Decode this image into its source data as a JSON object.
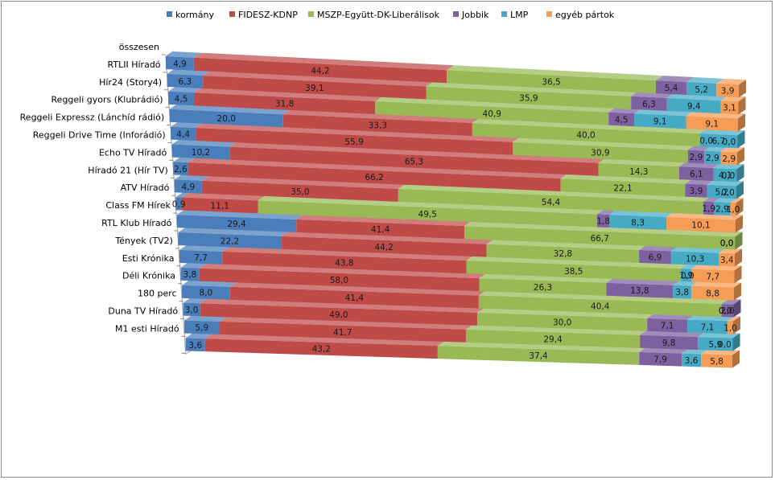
{
  "chart_data": {
    "type": "bar",
    "stacked": "100%",
    "orientation": "horizontal",
    "three_d": true,
    "title": "",
    "xlabel": "",
    "ylabel": "",
    "legend_position": "top",
    "categories": [
      "összesen",
      "RTLII Híradó",
      "Hír24 (Story4)",
      "Reggeli gyors (Klubrádió)",
      "Reggeli Expressz (Lánchíd rádió)",
      "Reggeli Drive Time (Inforádió)",
      "Echo TV Híradó",
      "Híradó 21 (Hír TV)",
      "ATV Híradó",
      "Class FM Hírek",
      "RTL Klub Híradó",
      "Tények (TV2)",
      "Esti Krónika",
      "Déli Krónika",
      "180 perc",
      "Duna TV Híradó",
      "M1 esti Híradó"
    ],
    "series": [
      {
        "name": "kormány",
        "color": "#4a7ebb",
        "values": [
          4.9,
          6.3,
          4.5,
          20.0,
          4.4,
          10.2,
          2.6,
          4.9,
          0.9,
          29.4,
          22.2,
          7.7,
          3.8,
          8.0,
          3.0,
          5.9,
          3.6
        ],
        "labels": [
          "4,9",
          "6,3",
          "4,5",
          "20,0",
          "4,4",
          "10,2",
          "2,6",
          "4,9",
          "0,9",
          "29,4",
          "22,2",
          "7,7",
          "3,8",
          "8,0",
          "3,0",
          "5,9",
          "3,6"
        ]
      },
      {
        "name": "FIDESZ-KDNP",
        "color": "#be4b48",
        "values": [
          44.2,
          39.1,
          31.8,
          33.3,
          55.9,
          65.3,
          66.2,
          35.0,
          11.1,
          41.4,
          44.2,
          43.8,
          58.0,
          41.4,
          49.0,
          41.7,
          43.2
        ],
        "labels": [
          "44,2",
          "39,1",
          "31,8",
          "33,3",
          "55,9",
          "65,3",
          "66,2",
          "35,0",
          "11,1",
          "41,4",
          "44,2",
          "43,8",
          "58,0",
          "41,4",
          "49,0",
          "41,7",
          "43,2"
        ]
      },
      {
        "name": "MSZP-Együtt-DK-Liberálisok",
        "color": "#98b954",
        "values": [
          36.5,
          35.9,
          40.9,
          40.0,
          30.9,
          14.3,
          22.1,
          54.4,
          49.5,
          66.7,
          32.8,
          38.5,
          26.3,
          40.4,
          30.0,
          29.4,
          37.4
        ],
        "labels": [
          "36,5",
          "35,9",
          "40,9",
          "40,0",
          "30,9",
          "14,3",
          "22,1",
          "54,4",
          "49,5",
          "66,7",
          "32,8",
          "38,5",
          "26,3",
          "40,4",
          "30,0",
          "29,4",
          "37,4"
        ]
      },
      {
        "name": "Jobbik",
        "color": "#7d60a0",
        "values": [
          5.4,
          6.3,
          4.5,
          0.0,
          2.9,
          6.1,
          3.9,
          1.9,
          1.8,
          0.0,
          6.9,
          0.0,
          13.8,
          2.0,
          7.1,
          9.8,
          7.9
        ],
        "labels": [
          "5,4",
          "6,3",
          "4,5",
          "0,0",
          "2,9",
          "6,1",
          "3,9",
          "1,9",
          "1,8",
          "0,0",
          "6,9",
          "0,0",
          "13,8",
          "2,0",
          "7,1",
          "9,8",
          "7,9"
        ]
      },
      {
        "name": "LMP",
        "color": "#46aac5",
        "values": [
          5.2,
          9.4,
          9.1,
          6.7,
          2.9,
          4.1,
          5.2,
          2.9,
          8.3,
          0.0,
          10.3,
          1.9,
          3.8,
          0.0,
          7.1,
          5.9,
          3.6
        ],
        "labels": [
          "5,2",
          "9,4",
          "9,1",
          "6,7",
          "2,9",
          "4,1",
          "5,2",
          "2,9",
          "8,3",
          "0,0",
          "10,3",
          "1,9",
          "3,8",
          "0,0",
          "7,1",
          "5,9",
          "3,6"
        ]
      },
      {
        "name": "egyéb pártok",
        "color": "#f59d56",
        "values": [
          3.9,
          3.1,
          9.1,
          0.0,
          2.9,
          0.0,
          0.0,
          1.0,
          10.1,
          0.0,
          3.4,
          7.7,
          8.8,
          0.0,
          1.0,
          0.0,
          5.8
        ],
        "labels": [
          "3,9",
          "3,1",
          "9,1",
          "0,0",
          "2,9",
          "0,0",
          "0,0",
          "1,0",
          "10,1",
          "0,0",
          "3,4",
          "7,7",
          "8,8",
          "0,0",
          "1,0",
          "0,0",
          "5,8"
        ]
      }
    ]
  }
}
